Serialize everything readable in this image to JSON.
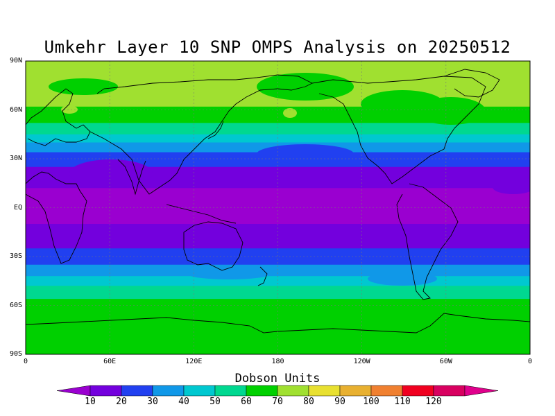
{
  "title": "Umkehr Layer 10 SNP OMPS Analysis on 20250512",
  "colorbar_title": "Dobson Units",
  "lat_labels": [
    "90N",
    "60N",
    "30N",
    "EQ",
    "30S",
    "60S",
    "90S"
  ],
  "lon_labels": [
    "0",
    "60E",
    "120E",
    "180",
    "120W",
    "60W",
    "0"
  ],
  "colorbar": {
    "ticks": [
      "10",
      "20",
      "30",
      "40",
      "50",
      "60",
      "70",
      "80",
      "90",
      "100",
      "110",
      "120"
    ],
    "colors": [
      "#9a00d0",
      "#7300dd",
      "#2140f0",
      "#1098e8",
      "#00c8d0",
      "#00d890",
      "#00d000",
      "#a0e030",
      "#e8e030",
      "#e8b030",
      "#f08030",
      "#f00020",
      "#d80060",
      "#e0008c"
    ]
  },
  "map": {
    "projection": "cylindrical equidistant",
    "lon_range": [
      0,
      360
    ],
    "lat_range": [
      -90,
      90
    ],
    "grid": true,
    "coastlines": true,
    "bands": [
      {
        "lat_north": 90,
        "lat_south": 62,
        "value_range": "70-80",
        "color": "#a0e030"
      },
      {
        "lat_north": 62,
        "lat_south": 52,
        "value_range": "60-70",
        "color": "#00d000"
      },
      {
        "lat_north": 52,
        "lat_south": 45,
        "value_range": "50-60",
        "color": "#00d890"
      },
      {
        "lat_north": 45,
        "lat_south": 40,
        "value_range": "40-50",
        "color": "#00c8d0"
      },
      {
        "lat_north": 40,
        "lat_south": 34,
        "value_range": "30-40",
        "color": "#1098e8"
      },
      {
        "lat_north": 34,
        "lat_south": 25,
        "value_range": "20-30",
        "color": "#2140f0"
      },
      {
        "lat_north": 25,
        "lat_south": 12,
        "value_range": "10-20",
        "color": "#7300dd"
      },
      {
        "lat_north": 12,
        "lat_south": -10,
        "value_range": "<10",
        "color": "#9a00d0"
      },
      {
        "lat_north": -10,
        "lat_south": -25,
        "value_range": "10-20",
        "color": "#7300dd"
      },
      {
        "lat_north": -25,
        "lat_south": -35,
        "value_range": "20-30",
        "color": "#2140f0"
      },
      {
        "lat_north": -35,
        "lat_south": -42,
        "value_range": "30-40",
        "color": "#1098e8"
      },
      {
        "lat_north": -42,
        "lat_south": -48,
        "value_range": "40-50",
        "color": "#00c8d0"
      },
      {
        "lat_north": -48,
        "lat_south": -56,
        "value_range": "50-60",
        "color": "#00d890"
      },
      {
        "lat_north": -56,
        "lat_south": -62,
        "value_range": "60-70",
        "color": "#00d000"
      },
      {
        "lat_north": -62,
        "lat_south": -90,
        "value_range": "60-70",
        "color": "#00d000"
      }
    ]
  }
}
